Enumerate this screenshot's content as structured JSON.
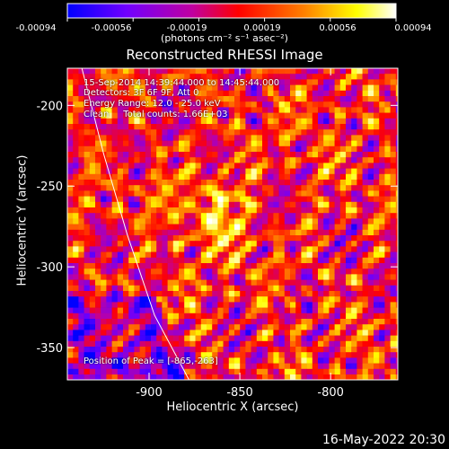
{
  "colorbar": {
    "tick_labels": [
      "-0.00094",
      "-0.00056",
      "-0.00019",
      "0.00019",
      "0.00056",
      "0.00094"
    ],
    "units": "(photons cm⁻² s⁻¹ asec⁻²)"
  },
  "title": "Reconstructed RHESSI Image",
  "info": {
    "line1": "15-Sep-2014 14:39:44.000 to 14:45:44.000",
    "line2": "Detectors: 3F 6F 9F, Att 0",
    "line3": "Energy Range: 12.0 - 25.0 keV",
    "line4": "Clean     Total counts: 1.66E+03"
  },
  "peak_text": "Position of Peak = [-865,-263]",
  "timestamp": "16-May-2022 20:30",
  "chart_data": {
    "type": "heatmap",
    "title": "Reconstructed RHESSI Image",
    "xlabel": "Heliocentric X (arcsec)",
    "ylabel": "Heliocentric Y (arcsec)",
    "xlim": [
      -945,
      -763
    ],
    "ylim": [
      -370,
      -177
    ],
    "x_ticks": [
      -900,
      -850,
      -800
    ],
    "y_ticks": [
      -200,
      -250,
      -300,
      -350
    ],
    "x_tick_labels": [
      "-900",
      "-850",
      "-800"
    ],
    "y_tick_labels": [
      "-200",
      "-250",
      "-300",
      "-350"
    ],
    "colorbar_range": [
      -0.00094,
      0.00094
    ],
    "peak_position": [
      -865,
      -263
    ],
    "limb_curve": [
      [
        -937,
        -177
      ],
      [
        -925,
        -230
      ],
      [
        -912,
        -280
      ],
      [
        -897,
        -330
      ],
      [
        -878,
        -370
      ]
    ],
    "colormap": [
      "#0000ff",
      "#6a00ff",
      "#c000a0",
      "#ff0000",
      "#ff8000",
      "#ffff00",
      "#ffffff"
    ]
  }
}
